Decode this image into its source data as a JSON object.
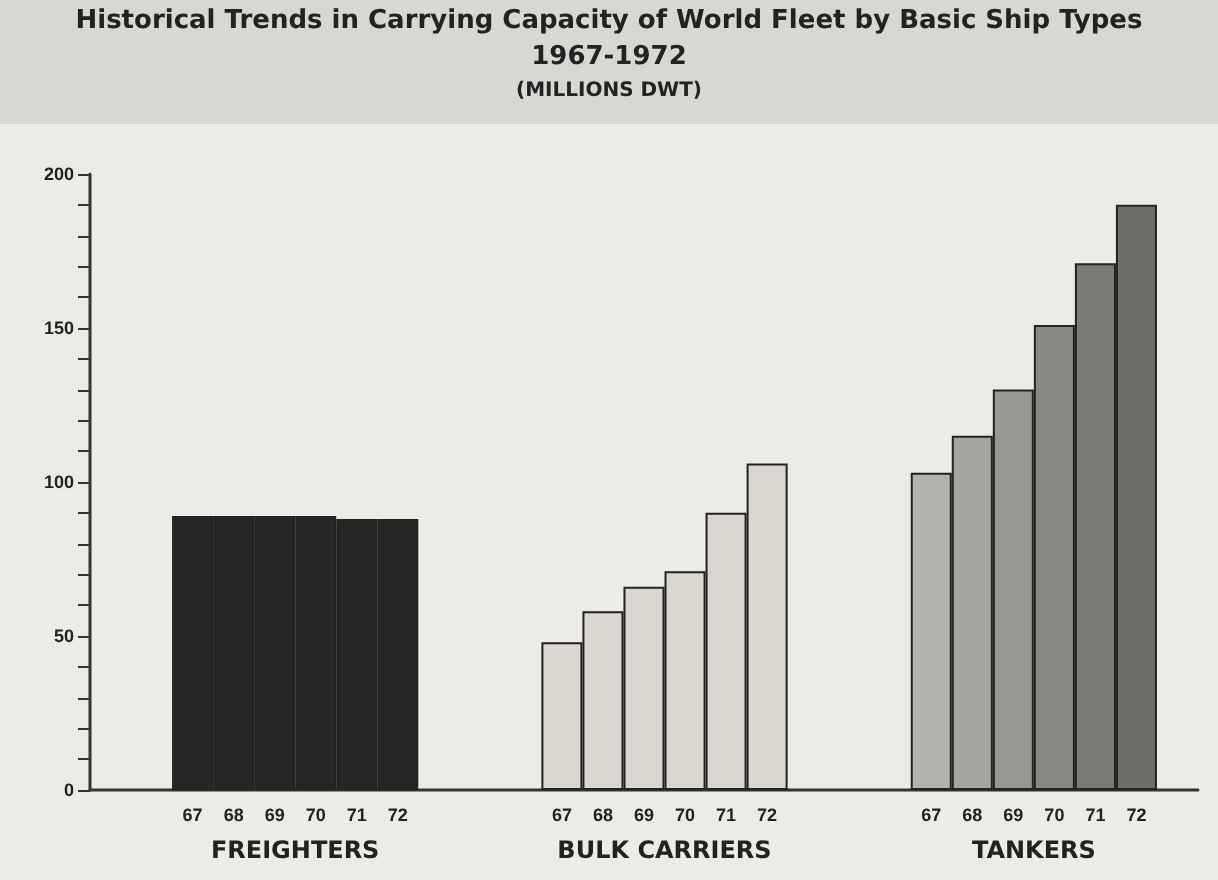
{
  "chart_data": {
    "type": "bar",
    "title": "Historical Trends in Carrying Capacity of World Fleet by Basic Ship Types 1967-1972",
    "subtitle": "(MILLIONS DWT)",
    "categories": [
      null,
      null,
      "67",
      "68",
      "69",
      "70",
      "71",
      "72",
      null,
      null,
      null,
      "67",
      "68",
      "69",
      "70",
      "71",
      "72",
      null,
      null,
      null,
      "67",
      "68",
      "69",
      "70",
      "71",
      "72",
      null
    ],
    "values": [
      null,
      null,
      89,
      89,
      89,
      89,
      88,
      88,
      null,
      null,
      null,
      48,
      58,
      66,
      71,
      90,
      106,
      null,
      null,
      null,
      103,
      115,
      130,
      151,
      171,
      190,
      null
    ],
    "colors": [
      null,
      null,
      "#262626",
      "#262626",
      "#262626",
      "#262626",
      "#262626",
      "#262626",
      null,
      null,
      null,
      "#d9d7d0",
      "#d9d7d0",
      "#d9d7d0",
      "#d9d7d0",
      "#d9d7d0",
      "#d9d7d0",
      null,
      null,
      null,
      "#b4b2ac",
      "#a6a49f",
      "#989691",
      "#8a8884",
      "#7d7b77",
      "#6f6d6a",
      null
    ],
    "annotations": [
      "FREIGHTERS",
      "BULK CARRIERS",
      "TANKERS"
    ],
    "ylim": [
      0,
      200
    ],
    "yticks": [
      0,
      {
        "value": 10,
        "label": null
      },
      {
        "value": 20,
        "label": null
      },
      {
        "value": 30,
        "label": null
      },
      {
        "value": 40,
        "label": null
      },
      50,
      {
        "value": 60,
        "label": null
      },
      {
        "value": 70,
        "label": null
      },
      {
        "value": 80,
        "label": null
      },
      {
        "value": 90,
        "label": null
      },
      100,
      {
        "value": 110,
        "label": null
      },
      {
        "value": 120,
        "label": null
      },
      {
        "value": 130,
        "label": null
      },
      {
        "value": 140,
        "label": null
      },
      150,
      {
        "value": 160,
        "label": null
      },
      {
        "value": 170,
        "label": null
      },
      {
        "value": 180,
        "label": null
      },
      {
        "value": 190,
        "label": null
      },
      200
    ]
  }
}
